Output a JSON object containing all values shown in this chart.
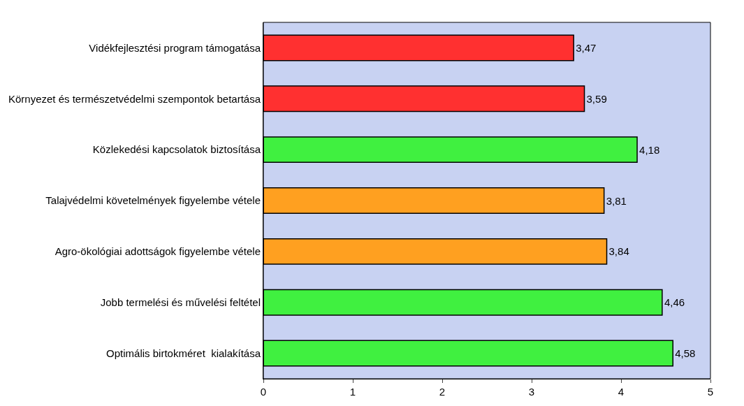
{
  "chart_data": {
    "type": "bar",
    "orientation": "horizontal",
    "categories": [
      "Vidékfejlesztési program támogatása",
      "Környezet és természetvédelmi szempontok betartása",
      "Közlekedési kapcsolatok biztosítása",
      "Talajvédelmi követelmények figyelembe vétele",
      "Agro-ökológiai adottságok figyelembe vétele",
      "Jobb termelési és művelési feltétel",
      "Optimális birtokméret  kialakítása"
    ],
    "values": [
      3.47,
      3.59,
      4.18,
      3.81,
      3.84,
      4.46,
      4.58
    ],
    "value_labels": [
      "3,47",
      "3,59",
      "4,18",
      "3,81",
      "3,84",
      "4,46",
      "4,58"
    ],
    "colors": [
      "#ff3030",
      "#ff3030",
      "#40f040",
      "#ffa020",
      "#ffa020",
      "#40f040",
      "#40f040"
    ],
    "xlim": [
      0,
      5
    ],
    "xticks": [
      0,
      1,
      2,
      3,
      4,
      5
    ],
    "grid": false,
    "legend": false
  }
}
